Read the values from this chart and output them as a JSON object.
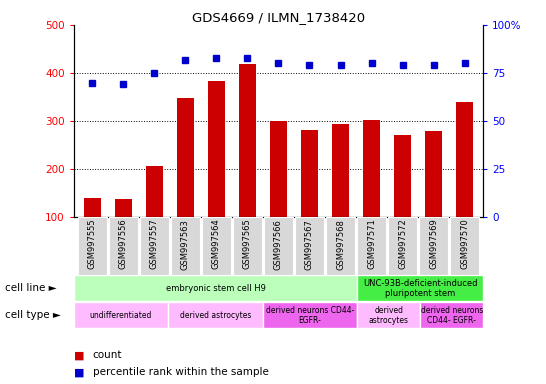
{
  "title": "GDS4669 / ILMN_1738420",
  "samples": [
    "GSM997555",
    "GSM997556",
    "GSM997557",
    "GSM997563",
    "GSM997564",
    "GSM997565",
    "GSM997566",
    "GSM997567",
    "GSM997568",
    "GSM997571",
    "GSM997572",
    "GSM997569",
    "GSM997570"
  ],
  "counts": [
    140,
    137,
    207,
    348,
    383,
    418,
    300,
    281,
    293,
    302,
    270,
    279,
    340
  ],
  "percentiles": [
    70,
    69,
    75,
    82,
    83,
    83,
    80,
    79,
    79,
    80,
    79,
    79,
    80
  ],
  "ylim_left": [
    100,
    500
  ],
  "ylim_right": [
    0,
    100
  ],
  "yticks_left": [
    100,
    200,
    300,
    400,
    500
  ],
  "yticks_right": [
    0,
    25,
    50,
    75,
    100
  ],
  "bar_color": "#cc0000",
  "dot_color": "#0000cc",
  "cell_line_groups": [
    {
      "label": "embryonic stem cell H9",
      "start": 0,
      "end": 9,
      "color": "#bbffbb"
    },
    {
      "label": "UNC-93B-deficient-induced\npluripotent stem",
      "start": 9,
      "end": 13,
      "color": "#44ee44"
    }
  ],
  "cell_type_groups": [
    {
      "label": "undifferentiated",
      "start": 0,
      "end": 3,
      "color": "#ffbbff"
    },
    {
      "label": "derived astrocytes",
      "start": 3,
      "end": 6,
      "color": "#ffbbff"
    },
    {
      "label": "derived neurons CD44-\nEGFR-",
      "start": 6,
      "end": 9,
      "color": "#ee66ee"
    },
    {
      "label": "derived\nastrocytes",
      "start": 9,
      "end": 11,
      "color": "#ffbbff"
    },
    {
      "label": "derived neurons\nCD44- EGFR-",
      "start": 11,
      "end": 13,
      "color": "#ee66ee"
    }
  ],
  "legend_labels": [
    "count",
    "percentile rank within the sample"
  ]
}
